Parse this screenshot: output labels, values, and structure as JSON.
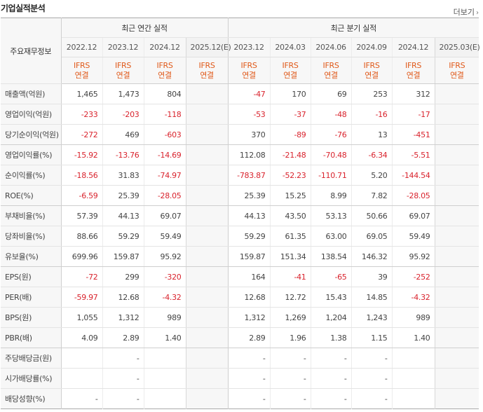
{
  "header": {
    "title": "기업실적분석",
    "more_label": "더보기"
  },
  "table": {
    "row_header_label": "주요재무정보",
    "annual_group_label": "최근 연간 실적",
    "quarterly_group_label": "최근 분기 실적",
    "annual_periods": [
      "2022.12",
      "2023.12",
      "2024.12",
      "2025.12(E)"
    ],
    "quarterly_periods": [
      "2023.12",
      "2024.03",
      "2024.06",
      "2024.09",
      "2024.12",
      "2025.03(E)"
    ],
    "basis_line1": "IFRS",
    "basis_line2": "연결",
    "rows": [
      {
        "label": "매출액(억원)",
        "annual": [
          "1,465",
          "1,473",
          "804",
          ""
        ],
        "quarterly": [
          "-47",
          "170",
          "69",
          "253",
          "312",
          ""
        ]
      },
      {
        "label": "영업이익(억원)",
        "annual": [
          "-233",
          "-203",
          "-118",
          ""
        ],
        "quarterly": [
          "-53",
          "-37",
          "-48",
          "-16",
          "-17",
          ""
        ]
      },
      {
        "label": "당기순이익(억원)",
        "annual": [
          "-272",
          "469",
          "-603",
          ""
        ],
        "quarterly": [
          "370",
          "-89",
          "-76",
          "13",
          "-451",
          ""
        ]
      },
      {
        "label": "영업이익률(%)",
        "annual": [
          "-15.92",
          "-13.76",
          "-14.69",
          ""
        ],
        "quarterly": [
          "112.08",
          "-21.48",
          "-70.48",
          "-6.34",
          "-5.51",
          ""
        ]
      },
      {
        "label": "순이익률(%)",
        "annual": [
          "-18.56",
          "31.83",
          "-74.97",
          ""
        ],
        "quarterly": [
          "-783.87",
          "-52.23",
          "-110.71",
          "5.20",
          "-144.54",
          ""
        ]
      },
      {
        "label": "ROE(%)",
        "annual": [
          "-6.59",
          "25.39",
          "-28.05",
          ""
        ],
        "quarterly": [
          "25.39",
          "15.25",
          "8.99",
          "7.82",
          "-28.05",
          ""
        ]
      },
      {
        "label": "부채비율(%)",
        "annual": [
          "57.39",
          "44.13",
          "69.07",
          ""
        ],
        "quarterly": [
          "44.13",
          "43.50",
          "53.13",
          "50.66",
          "69.07",
          ""
        ]
      },
      {
        "label": "당좌비율(%)",
        "annual": [
          "88.66",
          "59.29",
          "59.49",
          ""
        ],
        "quarterly": [
          "59.29",
          "61.35",
          "63.00",
          "69.05",
          "59.49",
          ""
        ]
      },
      {
        "label": "유보율(%)",
        "annual": [
          "699.96",
          "159.87",
          "95.92",
          ""
        ],
        "quarterly": [
          "159.87",
          "151.34",
          "138.54",
          "146.32",
          "95.92",
          ""
        ]
      },
      {
        "label": "EPS(원)",
        "annual": [
          "-72",
          "299",
          "-320",
          ""
        ],
        "quarterly": [
          "164",
          "-41",
          "-65",
          "39",
          "-252",
          ""
        ]
      },
      {
        "label": "PER(배)",
        "annual": [
          "-59.97",
          "12.68",
          "-4.32",
          ""
        ],
        "quarterly": [
          "12.68",
          "12.72",
          "15.43",
          "14.85",
          "-4.32",
          ""
        ]
      },
      {
        "label": "BPS(원)",
        "annual": [
          "1,055",
          "1,312",
          "989",
          ""
        ],
        "quarterly": [
          "1,312",
          "1,269",
          "1,204",
          "1,243",
          "989",
          ""
        ]
      },
      {
        "label": "PBR(배)",
        "annual": [
          "4.09",
          "2.89",
          "1.40",
          ""
        ],
        "quarterly": [
          "2.89",
          "1.96",
          "1.38",
          "1.15",
          "1.40",
          ""
        ]
      },
      {
        "label": "주당배당금(원)",
        "annual": [
          "",
          "-",
          "",
          ""
        ],
        "quarterly": [
          "-",
          "-",
          "-",
          "-",
          "",
          ""
        ]
      },
      {
        "label": "시가배당률(%)",
        "annual": [
          "",
          "-",
          "",
          ""
        ],
        "quarterly": [
          "-",
          "-",
          "-",
          "-",
          "",
          ""
        ]
      },
      {
        "label": "배당성향(%)",
        "annual": [
          "-",
          "-",
          "",
          ""
        ],
        "quarterly": [
          "-",
          "-",
          "-",
          "-",
          "",
          ""
        ]
      }
    ],
    "group_end_rows": [
      2,
      5,
      8,
      12
    ],
    "negative_color": "#d9232d",
    "basis_color": "#e05a1b"
  }
}
